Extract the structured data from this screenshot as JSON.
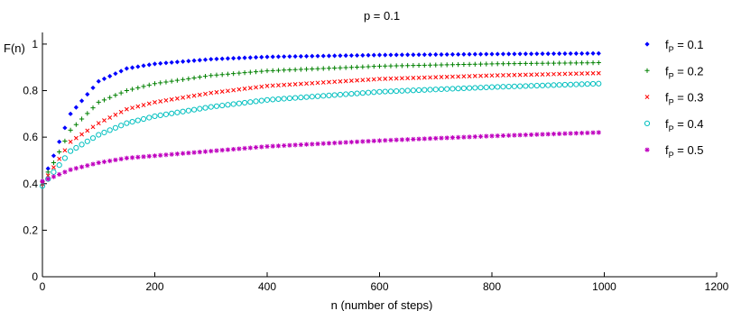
{
  "chart_data": {
    "type": "scatter",
    "title": "p = 0.1",
    "xlabel": "n (number of steps)",
    "ylabel": "F(n)",
    "xlim": [
      0,
      1200
    ],
    "ylim": [
      0,
      1.05
    ],
    "xticks": [
      0,
      200,
      400,
      600,
      800,
      1000,
      1200
    ],
    "yticks": [
      0,
      0.2,
      0.4,
      0.6,
      0.8,
      1
    ],
    "xtick_labels": [
      "0",
      "200",
      "400",
      "600",
      "800",
      "1000",
      "1200"
    ],
    "ytick_labels": [
      "0",
      "0.2",
      "0.4",
      "0.6",
      "0.8",
      "1"
    ],
    "grid": false,
    "legend_position": "right",
    "x_range": [
      0,
      990
    ],
    "x_step": 10,
    "series": [
      {
        "name_main": "f",
        "name_sub": "P",
        "name_value": " = 0.1",
        "color": "#0000ff",
        "marker": "diamond",
        "anchors": [
          [
            0,
            0.41
          ],
          [
            20,
            0.52
          ],
          [
            50,
            0.7
          ],
          [
            100,
            0.84
          ],
          [
            150,
            0.895
          ],
          [
            200,
            0.915
          ],
          [
            300,
            0.935
          ],
          [
            400,
            0.945
          ],
          [
            600,
            0.953
          ],
          [
            800,
            0.957
          ],
          [
            990,
            0.96
          ]
        ]
      },
      {
        "name_main": "f",
        "name_sub": "P",
        "name_value": " = 0.2",
        "color": "#008000",
        "marker": "plus",
        "anchors": [
          [
            0,
            0.41
          ],
          [
            20,
            0.49
          ],
          [
            50,
            0.63
          ],
          [
            100,
            0.75
          ],
          [
            150,
            0.8
          ],
          [
            200,
            0.83
          ],
          [
            300,
            0.865
          ],
          [
            400,
            0.885
          ],
          [
            600,
            0.905
          ],
          [
            800,
            0.915
          ],
          [
            990,
            0.92
          ]
        ]
      },
      {
        "name_main": "f",
        "name_sub": "P",
        "name_value": " = 0.3",
        "color": "#ff0000",
        "marker": "x",
        "anchors": [
          [
            0,
            0.4
          ],
          [
            20,
            0.47
          ],
          [
            50,
            0.58
          ],
          [
            100,
            0.66
          ],
          [
            150,
            0.72
          ],
          [
            200,
            0.75
          ],
          [
            300,
            0.79
          ],
          [
            400,
            0.82
          ],
          [
            600,
            0.85
          ],
          [
            800,
            0.865
          ],
          [
            990,
            0.875
          ]
        ]
      },
      {
        "name_main": "f",
        "name_sub": "P",
        "name_value": " = 0.4",
        "color": "#00bfbf",
        "marker": "circle",
        "anchors": [
          [
            0,
            0.39
          ],
          [
            20,
            0.45
          ],
          [
            50,
            0.54
          ],
          [
            100,
            0.61
          ],
          [
            150,
            0.66
          ],
          [
            200,
            0.69
          ],
          [
            300,
            0.73
          ],
          [
            400,
            0.76
          ],
          [
            600,
            0.795
          ],
          [
            800,
            0.815
          ],
          [
            990,
            0.83
          ]
        ]
      },
      {
        "name_main": "f",
        "name_sub": "P",
        "name_value": " = 0.5",
        "color": "#bf00bf",
        "marker": "star",
        "anchors": [
          [
            0,
            0.41
          ],
          [
            20,
            0.43
          ],
          [
            50,
            0.46
          ],
          [
            100,
            0.49
          ],
          [
            150,
            0.51
          ],
          [
            200,
            0.52
          ],
          [
            300,
            0.54
          ],
          [
            400,
            0.56
          ],
          [
            600,
            0.585
          ],
          [
            800,
            0.605
          ],
          [
            990,
            0.62
          ]
        ]
      }
    ]
  }
}
